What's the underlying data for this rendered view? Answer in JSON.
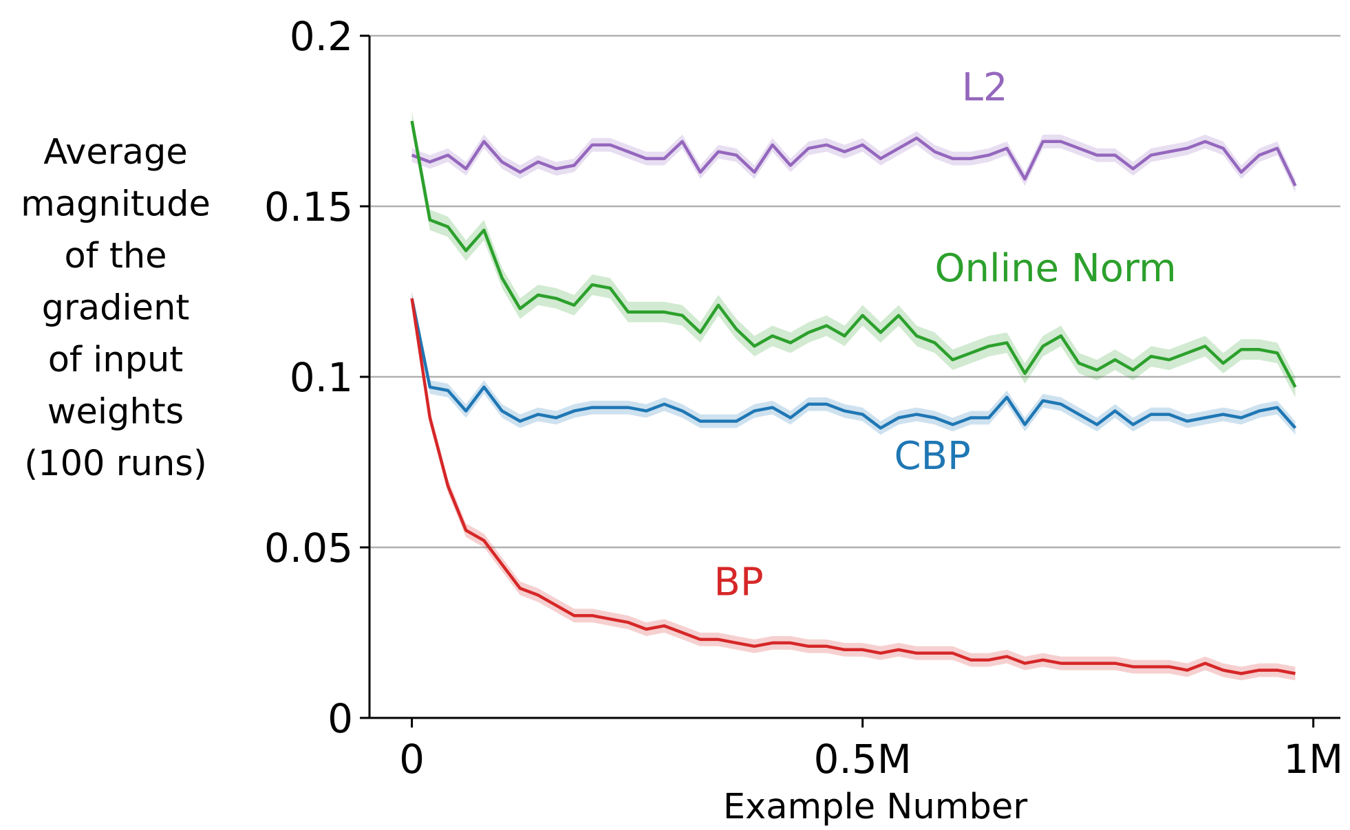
{
  "chart_data": {
    "type": "line",
    "xlabel": "Example Number",
    "ylabel_lines": [
      "Average",
      "magnitude",
      "of the",
      "gradient",
      "of input",
      "weights",
      "(100 runs)"
    ],
    "xlim": [
      -0.047,
      1.03
    ],
    "ylim": [
      0,
      0.2
    ],
    "x_ticks": [
      0,
      0.5,
      1
    ],
    "x_tick_labels": [
      "0",
      "0.5M",
      "1M"
    ],
    "y_ticks": [
      0,
      0.05,
      0.1,
      0.15,
      0.2
    ],
    "y_tick_labels": [
      "0",
      "0.05",
      "0.1",
      "0.15",
      "0.2"
    ],
    "grid": "horizontal",
    "x_step": 0.02,
    "series": [
      {
        "name": "L2",
        "color": "#9467bd",
        "band": 0.002,
        "label_x": 0.61,
        "label_y": 0.181,
        "values": [
          0.165,
          0.163,
          0.165,
          0.161,
          0.169,
          0.163,
          0.16,
          0.163,
          0.161,
          0.162,
          0.168,
          0.168,
          0.166,
          0.164,
          0.164,
          0.169,
          0.16,
          0.166,
          0.165,
          0.16,
          0.168,
          0.162,
          0.167,
          0.168,
          0.166,
          0.168,
          0.164,
          0.167,
          0.17,
          0.166,
          0.164,
          0.164,
          0.165,
          0.167,
          0.158,
          0.169,
          0.169,
          0.167,
          0.165,
          0.165,
          0.161,
          0.165,
          0.166,
          0.167,
          0.169,
          0.167,
          0.16,
          0.165,
          0.167,
          0.156
        ]
      },
      {
        "name": "Online Norm",
        "color": "#2ca02c",
        "band": 0.003,
        "label_x": 0.58,
        "label_y": 0.128,
        "values": [
          0.175,
          0.146,
          0.144,
          0.137,
          0.143,
          0.129,
          0.12,
          0.124,
          0.123,
          0.121,
          0.127,
          0.126,
          0.119,
          0.119,
          0.119,
          0.118,
          0.113,
          0.121,
          0.114,
          0.109,
          0.112,
          0.11,
          0.113,
          0.115,
          0.112,
          0.118,
          0.113,
          0.118,
          0.112,
          0.11,
          0.105,
          0.107,
          0.109,
          0.11,
          0.101,
          0.109,
          0.112,
          0.104,
          0.102,
          0.105,
          0.102,
          0.106,
          0.105,
          0.107,
          0.109,
          0.104,
          0.108,
          0.108,
          0.107,
          0.097
        ]
      },
      {
        "name": "CBP",
        "color": "#1f77b4",
        "band": 0.002,
        "label_x": 0.535,
        "label_y": 0.073,
        "values": [
          0.123,
          0.097,
          0.096,
          0.09,
          0.097,
          0.09,
          0.087,
          0.089,
          0.088,
          0.09,
          0.091,
          0.091,
          0.091,
          0.09,
          0.092,
          0.09,
          0.087,
          0.087,
          0.087,
          0.09,
          0.091,
          0.088,
          0.092,
          0.092,
          0.09,
          0.089,
          0.085,
          0.088,
          0.089,
          0.088,
          0.086,
          0.088,
          0.088,
          0.094,
          0.086,
          0.093,
          0.092,
          0.089,
          0.086,
          0.09,
          0.086,
          0.089,
          0.089,
          0.087,
          0.088,
          0.089,
          0.088,
          0.09,
          0.091,
          0.085
        ]
      },
      {
        "name": "BP",
        "color": "#d62728",
        "band": 0.002,
        "label_x": 0.335,
        "label_y": 0.036,
        "values": [
          0.123,
          0.088,
          0.068,
          0.055,
          0.052,
          0.045,
          0.038,
          0.036,
          0.033,
          0.03,
          0.03,
          0.029,
          0.028,
          0.026,
          0.027,
          0.025,
          0.023,
          0.023,
          0.022,
          0.021,
          0.022,
          0.022,
          0.021,
          0.021,
          0.02,
          0.02,
          0.019,
          0.02,
          0.019,
          0.019,
          0.019,
          0.017,
          0.017,
          0.018,
          0.016,
          0.017,
          0.016,
          0.016,
          0.016,
          0.016,
          0.015,
          0.015,
          0.015,
          0.014,
          0.016,
          0.014,
          0.013,
          0.014,
          0.014,
          0.013
        ]
      }
    ]
  }
}
